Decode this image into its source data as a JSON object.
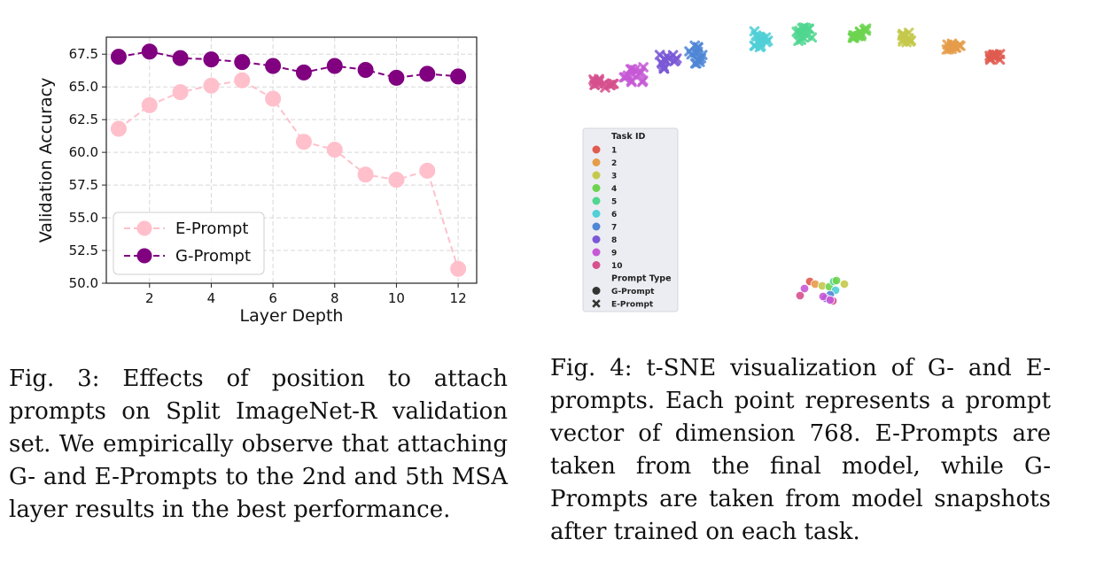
{
  "chart_data": [
    {
      "type": "line",
      "title": "",
      "xlabel": "Layer Depth",
      "ylabel": "Validation Accuracy",
      "x": [
        1,
        2,
        3,
        4,
        5,
        6,
        7,
        8,
        9,
        10,
        11,
        12
      ],
      "xticks": [
        2,
        4,
        6,
        8,
        10,
        12
      ],
      "yticks": [
        50.0,
        52.5,
        55.0,
        57.5,
        60.0,
        62.5,
        65.0,
        67.5
      ],
      "ytick_labels": [
        "50.0",
        "52.5",
        "55.0",
        "57.5",
        "60.0",
        "62.5",
        "65.0",
        "67.5"
      ],
      "xlim": [
        0.6,
        12.6
      ],
      "ylim": [
        50.0,
        68.8
      ],
      "grid": true,
      "legend_position": "lower-left",
      "series": [
        {
          "name": "E-Prompt",
          "color": "#ffc0cb",
          "style": "dashed",
          "values": [
            61.8,
            63.6,
            64.6,
            65.1,
            65.5,
            64.1,
            60.8,
            60.2,
            58.3,
            57.9,
            58.6,
            51.1
          ]
        },
        {
          "name": "G-Prompt",
          "color": "#800080",
          "style": "dashed",
          "values": [
            67.3,
            67.7,
            67.2,
            67.1,
            66.9,
            66.6,
            66.1,
            66.6,
            66.3,
            65.7,
            66.0,
            65.8
          ]
        }
      ]
    },
    {
      "type": "scatter",
      "title": "",
      "xlabel": "",
      "ylabel": "",
      "legend_position": "middle-left",
      "legend": {
        "title": "Task ID",
        "entries": [
          {
            "label": "1",
            "color": "#e05a4f"
          },
          {
            "label": "2",
            "color": "#e59c4a"
          },
          {
            "label": "3",
            "color": "#c4c94b"
          },
          {
            "label": "4",
            "color": "#6cd34f"
          },
          {
            "label": "5",
            "color": "#4fd68f"
          },
          {
            "label": "6",
            "color": "#4fcfd6"
          },
          {
            "label": "7",
            "color": "#4f86d6"
          },
          {
            "label": "8",
            "color": "#7a58d6"
          },
          {
            "label": "9",
            "color": "#c658d6"
          },
          {
            "label": "10",
            "color": "#d6508e"
          }
        ],
        "type_title": "Prompt Type",
        "types": [
          {
            "label": "G-Prompt",
            "marker": "circle"
          },
          {
            "label": "E-Prompt",
            "marker": "x"
          }
        ]
      }
    }
  ],
  "captions": {
    "fig3_label": "Fig. 3:",
    "fig3_text": "Effects of position to attach prompts on Split ImageNet-R validation set. We empirically observe that attaching G- and E-Prompts to the 2nd and 5th MSA layer results in the best performance.",
    "fig4_label": "Fig. 4:",
    "fig4_text": "t-SNE visualization of G- and E-prompts. Each point represents a prompt vector of dimension 768. E-Prompts are taken from the final model, while G-Prompts are taken from model snapshots after trained on each task."
  }
}
